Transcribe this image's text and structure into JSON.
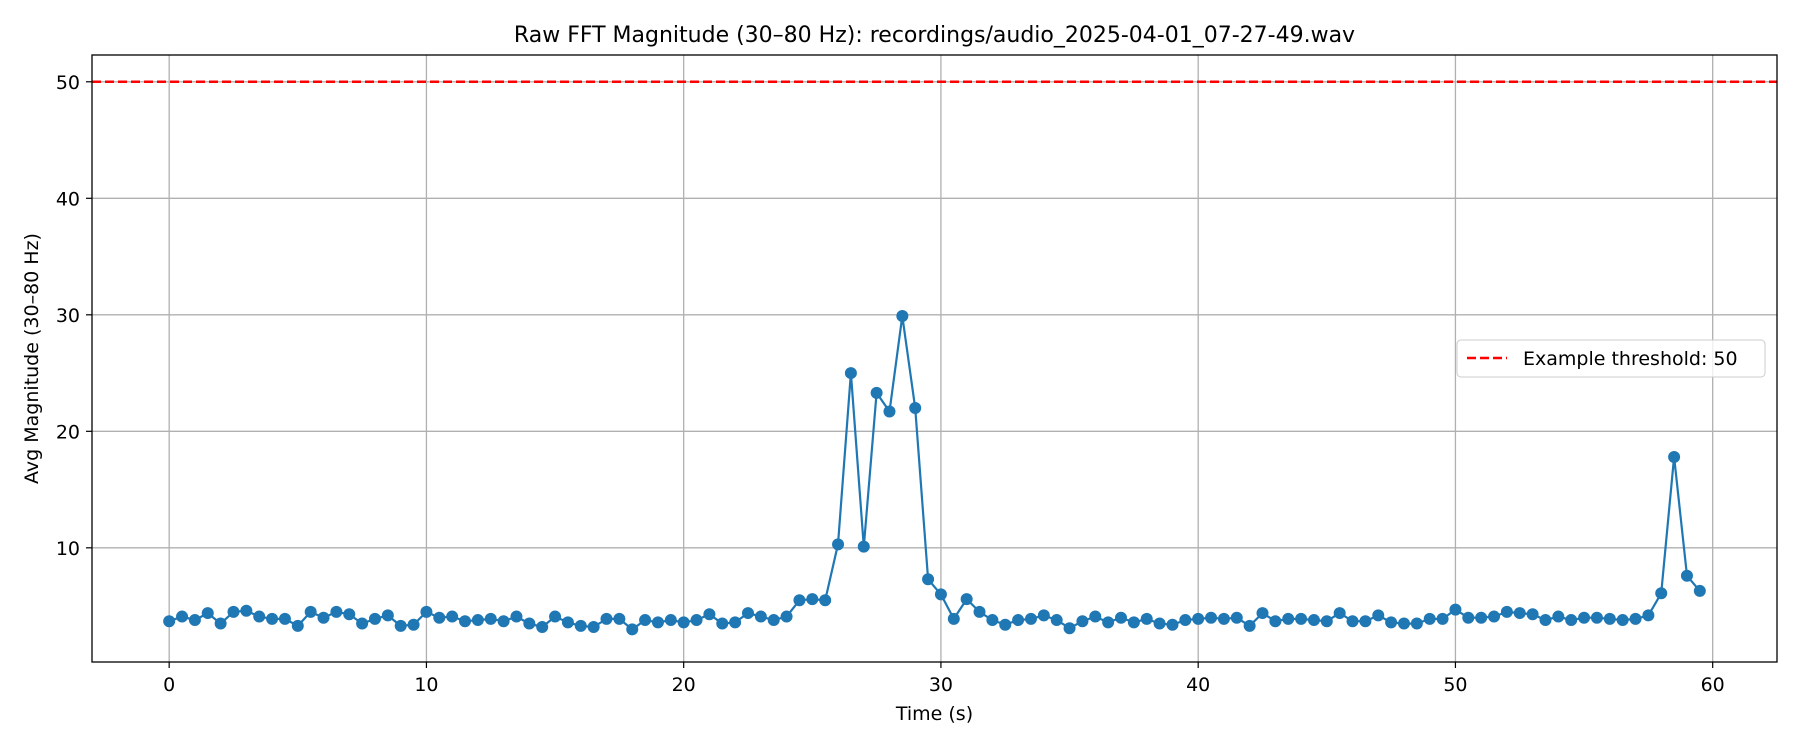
{
  "chart_data": {
    "type": "line",
    "title": "Raw FFT Magnitude (30–80 Hz): recordings/audio_2025-04-01_07-27-49.wav",
    "xlabel": "Time (s)",
    "ylabel": "Avg Magnitude (30–80 Hz)",
    "xlim": [
      -3,
      62.5
    ],
    "ylim": [
      0.2,
      52.3
    ],
    "xticks": [
      0,
      10,
      20,
      30,
      40,
      50,
      60
    ],
    "yticks": [
      10,
      20,
      30,
      40,
      50
    ],
    "grid": true,
    "legend_position": "center-right",
    "series": [
      {
        "color": "#1f77b4",
        "marker": "circle",
        "x": [
          0,
          0.5,
          1,
          1.5,
          2,
          2.5,
          3,
          3.5,
          4,
          4.5,
          5,
          5.5,
          6,
          6.5,
          7,
          7.5,
          8,
          8.5,
          9,
          9.5,
          10,
          10.5,
          11,
          11.5,
          12,
          12.5,
          13,
          13.5,
          14,
          14.5,
          15,
          15.5,
          16,
          16.5,
          17,
          17.5,
          18,
          18.5,
          19,
          19.5,
          20,
          20.5,
          21,
          21.5,
          22,
          22.5,
          23,
          23.5,
          24,
          24.5,
          25,
          25.5,
          26,
          26.5,
          27,
          27.5,
          28,
          28.5,
          29,
          29.5,
          30,
          30.5,
          31,
          31.5,
          32,
          32.5,
          33,
          33.5,
          34,
          34.5,
          35,
          35.5,
          36,
          36.5,
          37,
          37.5,
          38,
          38.5,
          39,
          39.5,
          40,
          40.5,
          41,
          41.5,
          42,
          42.5,
          43,
          43.5,
          44,
          44.5,
          45,
          45.5,
          46,
          46.5,
          47,
          47.5,
          48,
          48.5,
          49,
          49.5,
          50,
          50.5,
          51,
          51.5,
          52,
          52.5,
          53,
          53.5,
          54,
          54.5,
          55,
          55.5,
          56,
          56.5,
          57,
          57.5,
          58,
          58.5,
          59,
          59.5
        ],
        "y": [
          3.7,
          4.1,
          3.8,
          4.4,
          3.5,
          4.5,
          4.6,
          4.1,
          3.9,
          3.9,
          3.3,
          4.5,
          4.0,
          4.5,
          4.3,
          3.5,
          3.9,
          4.2,
          3.3,
          3.4,
          4.5,
          4.0,
          4.1,
          3.7,
          3.8,
          3.9,
          3.7,
          4.1,
          3.5,
          3.2,
          4.1,
          3.6,
          3.3,
          3.2,
          3.9,
          3.9,
          3.0,
          3.8,
          3.6,
          3.8,
          3.6,
          3.8,
          4.3,
          3.5,
          3.6,
          4.4,
          4.1,
          3.8,
          4.1,
          5.5,
          5.6,
          5.5,
          10.3,
          25.0,
          10.1,
          23.3,
          21.7,
          29.9,
          22.0,
          7.3,
          6.0,
          3.9,
          5.6,
          4.5,
          3.8,
          3.4,
          3.8,
          3.9,
          4.2,
          3.8,
          3.1,
          3.7,
          4.1,
          3.6,
          4.0,
          3.6,
          3.9,
          3.5,
          3.4,
          3.8,
          3.9,
          4.0,
          3.9,
          4.0,
          3.3,
          4.4,
          3.7,
          3.9,
          3.9,
          3.8,
          3.7,
          4.4,
          3.7,
          3.7,
          4.2,
          3.6,
          3.5,
          3.5,
          3.9,
          3.9,
          4.7,
          4.0,
          4.0,
          4.1,
          4.5,
          4.4,
          4.3,
          3.8,
          4.1,
          3.8,
          4.0,
          4.0,
          3.9,
          3.8,
          3.9,
          4.2,
          6.1,
          17.8,
          7.6,
          6.3
        ]
      }
    ],
    "threshold": {
      "value": 50,
      "color": "#ff0000",
      "label": "Example threshold: 50"
    }
  }
}
